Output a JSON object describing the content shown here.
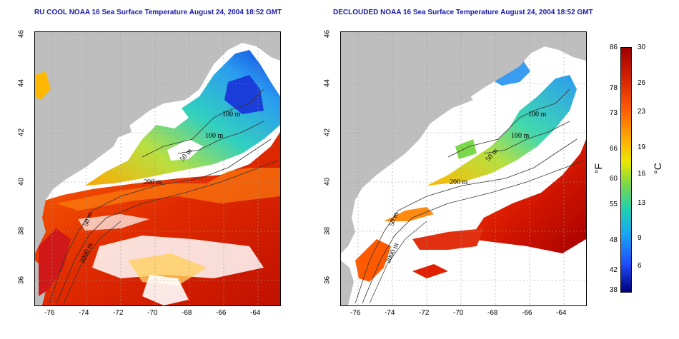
{
  "titles": {
    "left": "RU COOL NOAA 16 Sea Surface Temperature August 24, 2004 18:52 GMT",
    "right": "DECLOUDED NOAA 16 Sea Surface Temperature August 24, 2004 18:52 GMT"
  },
  "axes": {
    "x_ticks": [
      "-76",
      "-74",
      "-72",
      "-70",
      "-68",
      "-66",
      "-64"
    ],
    "y_ticks": [
      "46",
      "44",
      "42",
      "40",
      "38",
      "36"
    ]
  },
  "contours": {
    "left": [
      "100 m",
      "100 m",
      "50 m",
      "200 m",
      "50 m",
      "2000 m"
    ],
    "right": [
      "100 m",
      "100 m",
      "50 m",
      "200 m",
      "50 m",
      "2000 m"
    ]
  },
  "colorbar": {
    "fahrenheit": [
      "86",
      "78",
      "73",
      "66",
      "60",
      "55",
      "48",
      "42",
      "38"
    ],
    "celsius": [
      "30",
      "26",
      "23",
      "19",
      "16",
      "13",
      "9",
      "6"
    ],
    "unit_f": "°F",
    "unit_c": "°C"
  },
  "colors": {
    "land": "#bebebe",
    "cloud": "#ffffff",
    "title": "#1a1aa6"
  }
}
